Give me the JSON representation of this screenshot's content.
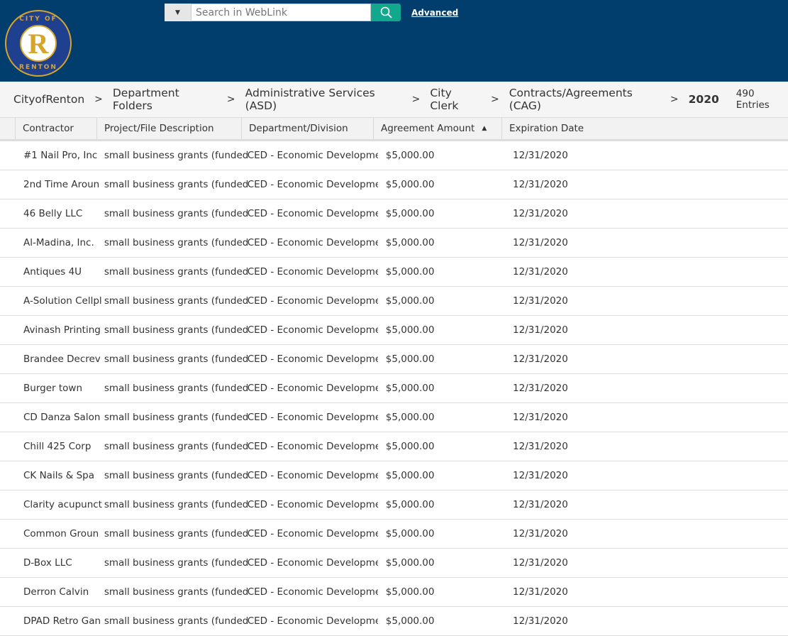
{
  "header": {
    "logo_text": "CITY OF RENTON",
    "search_placeholder": "Search in WebLink",
    "advanced_label": "Advanced"
  },
  "breadcrumb": [
    "CityofRenton",
    "Department Folders",
    "Administrative Services (ASD)",
    "City Clerk",
    "Contracts/Agreements (CAG)",
    "2020"
  ],
  "entries": "490 Entries",
  "columns": [
    "Contractor",
    "Project/File Description",
    "Department/Division",
    "Agreement Amount",
    "Expiration Date"
  ],
  "sort_indicator": "ascending",
  "rows": [
    [
      "#1 Nail Pro, Inc",
      "small business grants (funded",
      "CED - Economic Developme",
      "$5,000.00",
      "12/31/2020"
    ],
    [
      "2nd Time Aroun",
      "small business grants (funded",
      "CED - Economic Developme",
      "$5,000.00",
      "12/31/2020"
    ],
    [
      "46 Belly LLC",
      "small business grants (funded",
      "CED - Economic Developme",
      "$5,000.00",
      "12/31/2020"
    ],
    [
      "Al-Madina, Inc.",
      "small business grants (funded",
      "CED - Economic Developme",
      "$5,000.00",
      "12/31/2020"
    ],
    [
      "Antiques 4U",
      "small business grants (funded",
      "CED - Economic Developme",
      "$5,000.00",
      "12/31/2020"
    ],
    [
      "A-Solution Cellpl",
      "small business grants (funded",
      "CED - Economic Developme",
      "$5,000.00",
      "12/31/2020"
    ],
    [
      "Avinash Printing",
      "small business grants (funded",
      "CED - Economic Developme",
      "$5,000.00",
      "12/31/2020"
    ],
    [
      "Brandee Decrev",
      "small business grants (funded",
      "CED - Economic Developme",
      "$5,000.00",
      "12/31/2020"
    ],
    [
      "Burger town",
      "small business grants (funded",
      "CED - Economic Developme",
      "$5,000.00",
      "12/31/2020"
    ],
    [
      "CD Danza Salon",
      "small business grants (funded",
      "CED - Economic Developme",
      "$5,000.00",
      "12/31/2020"
    ],
    [
      "Chill 425 Corp",
      "small business grants (funded",
      "CED - Economic Developme",
      "$5,000.00",
      "12/31/2020"
    ],
    [
      "CK Nails & Spa",
      "small business grants (funded",
      "CED - Economic Developme",
      "$5,000.00",
      "12/31/2020"
    ],
    [
      "Clarity acupunct",
      "small business grants (funded",
      "CED - Economic Developme",
      "$5,000.00",
      "12/31/2020"
    ],
    [
      "Common Groun",
      "small business grants (funded",
      "CED - Economic Developme",
      "$5,000.00",
      "12/31/2020"
    ],
    [
      "D-Box LLC",
      "small business grants (funded",
      "CED - Economic Developme",
      "$5,000.00",
      "12/31/2020"
    ],
    [
      "Derron Calvin",
      "small business grants (funded",
      "CED - Economic Developme",
      "$5,000.00",
      "12/31/2020"
    ],
    [
      "DPAD Retro Gan",
      "small business grants (funded",
      "CED - Economic Developme",
      "$5,000.00",
      "12/31/2020"
    ]
  ]
}
